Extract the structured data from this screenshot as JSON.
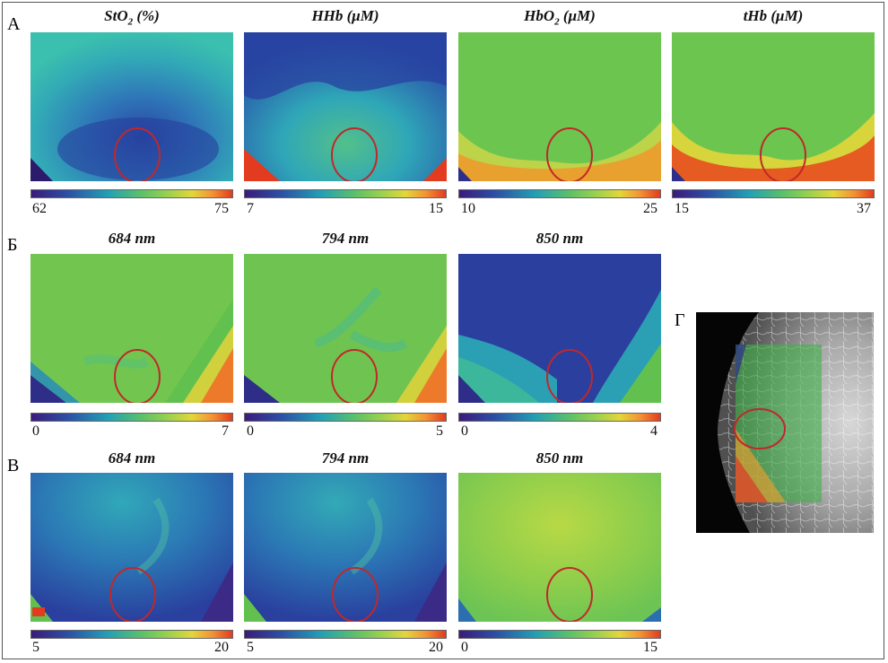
{
  "row_labels": {
    "a": "А",
    "b": "Б",
    "c": "В",
    "d": "Г"
  },
  "row_a": {
    "panels": [
      {
        "title_main": "StO",
        "title_sub": "2",
        "title_rest": " (%)",
        "min": "62",
        "max": "75"
      },
      {
        "title_main": "HHb (μM)",
        "title_sub": "",
        "title_rest": "",
        "min": "7",
        "max": "15"
      },
      {
        "title_main": "HbO",
        "title_sub": "2",
        "title_rest": " (μM)",
        "min": "10",
        "max": "25"
      },
      {
        "title_main": "tHb (μM)",
        "title_sub": "",
        "title_rest": "",
        "min": "15",
        "max": "37"
      }
    ]
  },
  "row_b": {
    "panels": [
      {
        "title": "684 nm",
        "min": "0",
        "max": "7"
      },
      {
        "title": "794 nm",
        "min": "0",
        "max": "5"
      },
      {
        "title": "850 nm",
        "min": "0",
        "max": "4"
      }
    ]
  },
  "row_c": {
    "panels": [
      {
        "title": "684 nm",
        "min": "5",
        "max": "20"
      },
      {
        "title": "794 nm",
        "min": "5",
        "max": "20"
      },
      {
        "title": "850 nm",
        "min": "0",
        "max": "15"
      }
    ]
  },
  "colors": {
    "roi_circle": "#c0282a",
    "colormap_low": "#3b1b7a",
    "colormap_high": "#e23b1f"
  }
}
